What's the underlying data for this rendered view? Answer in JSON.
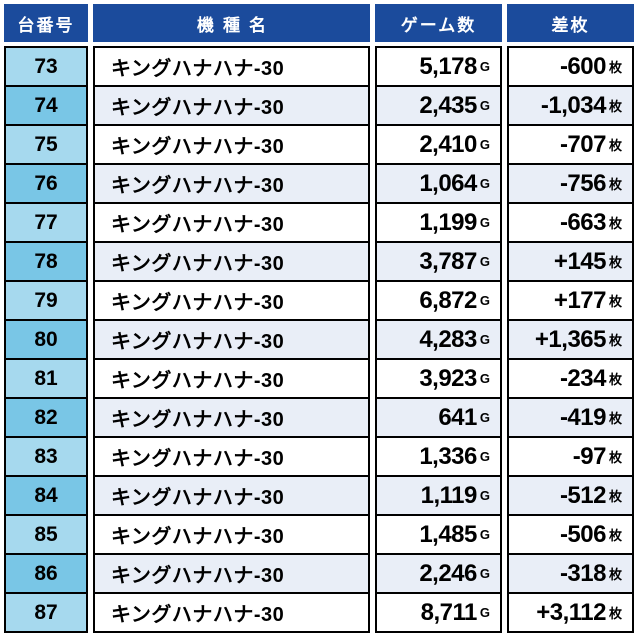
{
  "table": {
    "headers": [
      "台番号",
      "機種名",
      "ゲーム数",
      "差枚"
    ],
    "units": {
      "games": "G",
      "diff": "枚"
    },
    "rows": [
      {
        "no": "73",
        "model": "キングハナハナ-30",
        "games": "5,178",
        "diff": "-600"
      },
      {
        "no": "74",
        "model": "キングハナハナ-30",
        "games": "2,435",
        "diff": "-1,034"
      },
      {
        "no": "75",
        "model": "キングハナハナ-30",
        "games": "2,410",
        "diff": "-707"
      },
      {
        "no": "76",
        "model": "キングハナハナ-30",
        "games": "1,064",
        "diff": "-756"
      },
      {
        "no": "77",
        "model": "キングハナハナ-30",
        "games": "1,199",
        "diff": "-663"
      },
      {
        "no": "78",
        "model": "キングハナハナ-30",
        "games": "3,787",
        "diff": "+145"
      },
      {
        "no": "79",
        "model": "キングハナハナ-30",
        "games": "6,872",
        "diff": "+177"
      },
      {
        "no": "80",
        "model": "キングハナハナ-30",
        "games": "4,283",
        "diff": "+1,365"
      },
      {
        "no": "81",
        "model": "キングハナハナ-30",
        "games": "3,923",
        "diff": "-234"
      },
      {
        "no": "82",
        "model": "キングハナハナ-30",
        "games": "641",
        "diff": "-419"
      },
      {
        "no": "83",
        "model": "キングハナハナ-30",
        "games": "1,336",
        "diff": "-97"
      },
      {
        "no": "84",
        "model": "キングハナハナ-30",
        "games": "1,119",
        "diff": "-512"
      },
      {
        "no": "85",
        "model": "キングハナハナ-30",
        "games": "1,485",
        "diff": "-506"
      },
      {
        "no": "86",
        "model": "キングハナハナ-30",
        "games": "2,246",
        "diff": "-318"
      },
      {
        "no": "87",
        "model": "キングハナハナ-30",
        "games": "8,711",
        "diff": "+3,112"
      }
    ]
  },
  "colors": {
    "header_bg": "#1b4b9c",
    "header_text": "#ffffff",
    "border": "#000000",
    "no_cell_odd_row": "#a6d9ee",
    "no_cell_even_row": "#79c6e6",
    "row_odd_bg": "#ffffff",
    "row_even_bg": "#e9eef7"
  },
  "chart_data": {
    "type": "table",
    "title": "",
    "columns": [
      "台番号",
      "機種名",
      "ゲーム数 (G)",
      "差枚 (枚)"
    ],
    "rows": [
      [
        73,
        "キングハナハナ-30",
        5178,
        -600
      ],
      [
        74,
        "キングハナハナ-30",
        2435,
        -1034
      ],
      [
        75,
        "キングハナハナ-30",
        2410,
        -707
      ],
      [
        76,
        "キングハナハナ-30",
        1064,
        -756
      ],
      [
        77,
        "キングハナハナ-30",
        1199,
        -663
      ],
      [
        78,
        "キングハナハナ-30",
        3787,
        145
      ],
      [
        79,
        "キングハナハナ-30",
        6872,
        177
      ],
      [
        80,
        "キングハナハナ-30",
        4283,
        1365
      ],
      [
        81,
        "キングハナハナ-30",
        3923,
        -234
      ],
      [
        82,
        "キングハナハナ-30",
        641,
        -419
      ],
      [
        83,
        "キングハナハナ-30",
        1336,
        -97
      ],
      [
        84,
        "キングハナハナ-30",
        1119,
        -512
      ],
      [
        85,
        "キングハナハナ-30",
        1485,
        -506
      ],
      [
        86,
        "キングハナハナ-30",
        2246,
        -318
      ],
      [
        87,
        "キングハナハナ-30",
        8711,
        3112
      ]
    ]
  }
}
